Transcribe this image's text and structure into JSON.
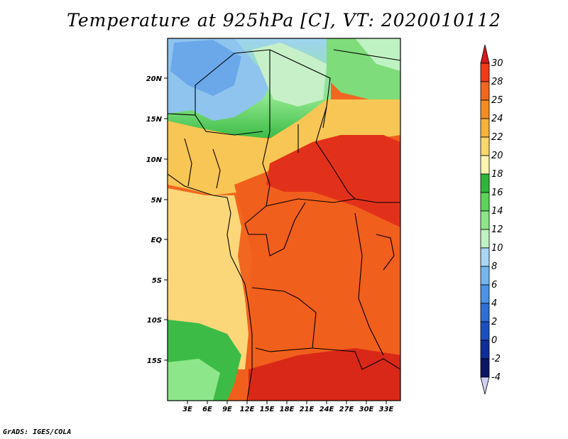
{
  "title": "Temperature at 925hPa [C], VT: 2020010112",
  "credit": "GrADS: IGES/COLA",
  "map": {
    "x_ticks": [
      "3E",
      "6E",
      "9E",
      "12E",
      "15E",
      "18E",
      "21E",
      "24E",
      "27E",
      "30E",
      "33E"
    ],
    "y_ticks": [
      "20N",
      "15N",
      "10N",
      "5N",
      "EQ",
      "5S",
      "10S",
      "15S"
    ]
  },
  "legend": {
    "labels": [
      "30",
      "28",
      "25",
      "24",
      "22",
      "20",
      "18",
      "16",
      "14",
      "12",
      "10",
      "8",
      "6",
      "4",
      "2",
      "0",
      "-2",
      "-4"
    ],
    "colors": [
      "#d7191c",
      "#f03b16",
      "#f2671f",
      "#f58c22",
      "#f7b23a",
      "#fbd76b",
      "#fff3b0",
      "#2fb53a",
      "#5dd35a",
      "#8ee68a",
      "#bff2c2",
      "#a9d6f5",
      "#76b6ee",
      "#4a93e5",
      "#2e6fd6",
      "#1b4fc0",
      "#0f2e99",
      "#0a1566",
      "#d0d0f5"
    ]
  }
}
